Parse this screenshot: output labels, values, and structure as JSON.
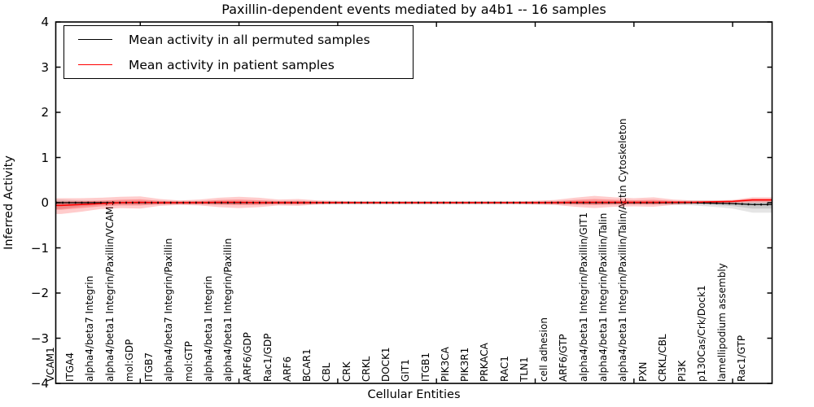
{
  "title": "Paxillin-dependent events mediated by a4b1 -- 16 samples",
  "axes": {
    "ylabel": "Inferred Activity",
    "xlabel": "Cellular Entities",
    "yticks": [
      "4",
      "3",
      "2",
      "1",
      "0",
      "−1",
      "−2",
      "−3",
      "−4"
    ]
  },
  "legend": {
    "items": [
      {
        "label": "Mean activity in all permuted samples",
        "color": "#000000"
      },
      {
        "label": "Mean activity in patient samples",
        "color": "#ff0000"
      }
    ]
  },
  "colors": {
    "permuted_line": "#000000",
    "patient_line": "#ff0000",
    "patient_band": "rgba(255,0,0,0.20)",
    "patient_band_inner": "rgba(255,0,0,0.25)",
    "permuted_band": "rgba(0,0,0,0.10)",
    "permuted_band_inner": "rgba(0,0,0,0.12)"
  },
  "chart_data": {
    "type": "line",
    "title": "Paxillin-dependent events mediated by a4b1 -- 16 samples",
    "xlabel": "Cellular Entities",
    "ylabel": "Inferred Activity",
    "ylim": [
      -4,
      4
    ],
    "grid": false,
    "legend_position": "upper left",
    "categories": [
      "VCAM1",
      "ITGA4",
      "alpha4/beta7 Integrin",
      "alpha4/beta1 Integrin/Paxillin/VCAM1",
      "mol:GDP",
      "ITGB7",
      "alpha4/beta7 Integrin/Paxillin",
      "mol:GTP",
      "alpha4/beta1 Integrin",
      "alpha4/beta1 Integrin/Paxillin",
      "ARF6/GDP",
      "Rac1/GDP",
      "ARF6",
      "BCAR1",
      "CBL",
      "CRK",
      "CRKL",
      "DOCK1",
      "GIT1",
      "ITGB1",
      "PIK3CA",
      "PIK3R1",
      "PRKACA",
      "RAC1",
      "TLN1",
      "cell adhesion",
      "ARF6/GTP",
      "alpha4/beta1 Integrin/Paxillin/GIT1",
      "alpha4/beta1 Integrin/Paxillin/Talin",
      "alpha4/beta1 Integrin/Paxillin/Talin/Actin Cytoskeleton",
      "PXN",
      "CRKL/CBL",
      "PI3K",
      "p130Cas/Crk/Dock1",
      "lamellipodium assembly",
      "Rac1/GTP"
    ],
    "series": [
      {
        "name": "Mean activity in all permuted samples",
        "color": "#000000",
        "values": [
          0,
          0,
          0,
          0,
          0,
          0,
          0,
          0,
          0,
          0,
          0,
          0,
          0,
          0,
          0,
          0,
          0,
          0,
          0,
          0,
          0,
          0,
          0,
          0,
          0,
          0,
          0,
          0,
          0,
          0,
          0,
          0,
          0,
          -0.01,
          -0.02,
          -0.04
        ],
        "band_upper": [
          0.07,
          0.05,
          0.04,
          0.04,
          0.04,
          0.04,
          0.04,
          0.04,
          0.04,
          0.04,
          0.04,
          0.04,
          0.04,
          0.04,
          0.04,
          0.04,
          0.04,
          0.04,
          0.04,
          0.04,
          0.04,
          0.04,
          0.04,
          0.04,
          0.04,
          0.04,
          0.04,
          0.04,
          0.04,
          0.04,
          0.04,
          0.04,
          0.05,
          0.05,
          0.05,
          0.05
        ],
        "band_lower": [
          -0.14,
          -0.08,
          -0.05,
          -0.04,
          -0.04,
          -0.04,
          -0.04,
          -0.04,
          -0.04,
          -0.04,
          -0.04,
          -0.04,
          -0.04,
          -0.04,
          -0.04,
          -0.04,
          -0.04,
          -0.04,
          -0.04,
          -0.04,
          -0.04,
          -0.04,
          -0.04,
          -0.04,
          -0.04,
          -0.04,
          -0.04,
          -0.04,
          -0.04,
          -0.04,
          -0.04,
          -0.05,
          -0.06,
          -0.09,
          -0.13,
          -0.22
        ]
      },
      {
        "name": "Mean activity in patient samples",
        "color": "#ff0000",
        "values": [
          -0.06,
          -0.04,
          -0.02,
          0,
          0.01,
          0,
          0,
          0,
          0.01,
          0.01,
          0,
          0,
          0,
          0,
          0,
          0,
          0,
          0,
          0,
          0,
          0,
          0,
          0,
          0,
          0,
          0,
          0.01,
          0.01,
          0.01,
          0.01,
          0.01,
          0.01,
          0.01,
          0.02,
          0.03,
          0.06
        ],
        "band_upper": [
          0.1,
          0.1,
          0.11,
          0.13,
          0.14,
          0.08,
          0.05,
          0.07,
          0.11,
          0.13,
          0.11,
          0.07,
          0.08,
          0.05,
          0.04,
          0.03,
          0.03,
          0.03,
          0.03,
          0.03,
          0.03,
          0.03,
          0.03,
          0.03,
          0.04,
          0.06,
          0.11,
          0.15,
          0.12,
          0.1,
          0.12,
          0.07,
          0.05,
          0.05,
          0.06,
          0.12
        ],
        "band_lower": [
          -0.25,
          -0.2,
          -0.14,
          -0.12,
          -0.13,
          -0.07,
          -0.05,
          -0.06,
          -0.1,
          -0.12,
          -0.1,
          -0.06,
          -0.07,
          -0.04,
          -0.03,
          -0.03,
          -0.03,
          -0.03,
          -0.03,
          -0.03,
          -0.03,
          -0.03,
          -0.03,
          -0.03,
          -0.04,
          -0.05,
          -0.09,
          -0.12,
          -0.09,
          -0.08,
          -0.09,
          -0.05,
          -0.03,
          -0.02,
          -0.01,
          0.0
        ]
      }
    ]
  }
}
